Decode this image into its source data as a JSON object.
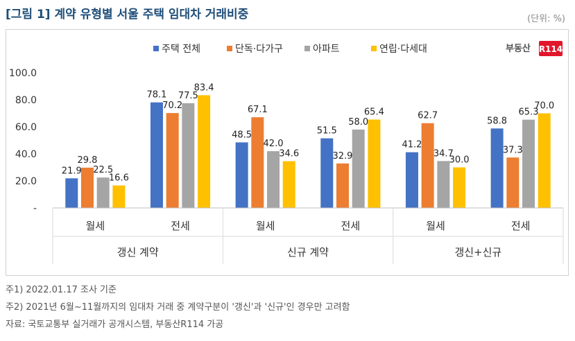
{
  "title": "[그림 1] 계약 유형별 서울 주택 임대차 거래비중",
  "unit": "(단위: %)",
  "logo": {
    "text": "부동산",
    "badge": "R114",
    "accent": "#e2162b"
  },
  "notes": [
    "주1) 2022.01.17 조사 기준",
    "주2) 2021년 6월~11월까지의 임대차 거래 중 계약구분이 '갱신'과 '신규'인 경우만 고려함",
    "자료: 국토교통부 실거래가 공개시스템, 부동산R114 가공"
  ],
  "chart_data": {
    "type": "bar",
    "legend_position": "top",
    "ylim": [
      0,
      100
    ],
    "yticks": [
      "-",
      "20.0",
      "40.0",
      "60.0",
      "80.0",
      "100.0"
    ],
    "groups": [
      {
        "label": "갱신 계약",
        "subcategories": [
          "월세",
          "전세"
        ]
      },
      {
        "label": "신규 계약",
        "subcategories": [
          "월세",
          "전세"
        ]
      },
      {
        "label": "갱신+신규",
        "subcategories": [
          "월세",
          "전세"
        ]
      }
    ],
    "series": [
      {
        "name": "주택 전체",
        "color": "#4472c4",
        "values": [
          21.9,
          78.1,
          48.5,
          51.5,
          41.2,
          58.8
        ],
        "labels": [
          "21.9",
          "78.1",
          "48.5",
          "51.5",
          "41.2",
          "58.8"
        ]
      },
      {
        "name": "단독·다가구",
        "color": "#ed7d31",
        "values": [
          29.8,
          70.2,
          67.1,
          32.9,
          62.7,
          37.3
        ],
        "labels": [
          "29.8",
          "70.2",
          "67.1",
          "32.9",
          "62.7",
          "37.3"
        ]
      },
      {
        "name": "아파트",
        "color": "#a5a5a5",
        "values": [
          22.5,
          77.5,
          42.0,
          58.0,
          34.7,
          65.3
        ],
        "labels": [
          "22.5",
          "77.5",
          "42.0",
          "58.0",
          "34.7",
          "65.3"
        ]
      },
      {
        "name": "연립·다세대",
        "color": "#ffc000",
        "values": [
          16.6,
          83.4,
          34.6,
          65.4,
          30.0,
          70.0
        ],
        "labels": [
          "16.6",
          "83.4",
          "34.6",
          "65.4",
          "30.0",
          "70.0"
        ]
      }
    ]
  }
}
